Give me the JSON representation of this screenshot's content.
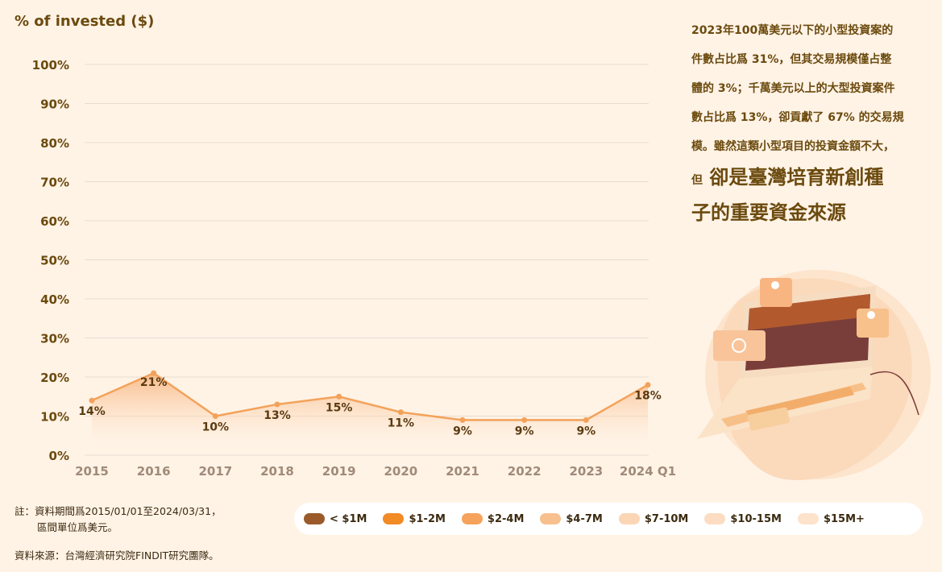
{
  "chart_data": {
    "type": "area",
    "ylabel": "% of invested ($)",
    "ylim": [
      0,
      100
    ],
    "yticks": [
      "0%",
      "10%",
      "20%",
      "30%",
      "40%",
      "50%",
      "60%",
      "70%",
      "80%",
      "90%",
      "100%"
    ],
    "categories": [
      "2015",
      "2016",
      "2017",
      "2018",
      "2019",
      "2020",
      "2021",
      "2022",
      "2023",
      "2024 Q1"
    ],
    "values": [
      14,
      21,
      10,
      13,
      15,
      11,
      9,
      9,
      9,
      18
    ],
    "data_labels": [
      "14%",
      "21%",
      "10%",
      "13%",
      "15%",
      "11%",
      "9%",
      "9%",
      "9%",
      "18%"
    ],
    "grid": true,
    "colors": {
      "line": "#f3a25a",
      "fill_top": "#f7b27a",
      "fill_bottom": "#fff3e6",
      "grid": "#e6dcd0",
      "text": "#6b4a0e"
    }
  },
  "side": {
    "line1": "2023年100萬美元以下的小型投資案的",
    "line2": "件數占比爲 31%，但其交易規模僅占整",
    "line3": "體的 3%；千萬美元以上的大型投資案件",
    "line4": "數占比爲 13%，卻貢獻了 67% 的交易規",
    "line5": "模。雖然這類小型項目的投資金額不大，",
    "small_prefix": "但",
    "emph1": "卻是臺灣培育新創種",
    "emph2": "子的重要資金來源"
  },
  "note": {
    "line1": "註：資料期間爲2015/01/01至2024/03/31，",
    "line2": "區間單位爲美元。"
  },
  "source": "資料來源：台灣經濟研究院FINDIT研究團隊。",
  "legend": [
    {
      "label": "< $1M",
      "color": "#9a5a2a"
    },
    {
      "label": "$1-2M",
      "color": "#f28a25"
    },
    {
      "label": "$2-4M",
      "color": "#f5a35c"
    },
    {
      "label": "$4-7M",
      "color": "#f8c08e"
    },
    {
      "label": "$7-10M",
      "color": "#fbd6b4"
    },
    {
      "label": "$10-15M",
      "color": "#fcdcc2"
    },
    {
      "label": "$15M+",
      "color": "#fde2cc"
    }
  ]
}
